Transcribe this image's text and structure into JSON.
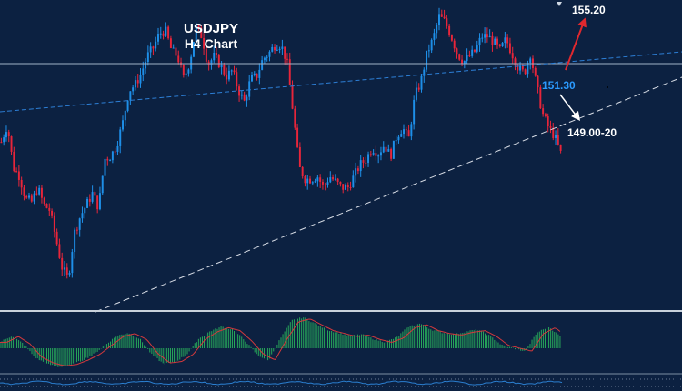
{
  "chart": {
    "title_line1": "USDJPY",
    "title_line2": "H4 Chart",
    "annotations": {
      "target_up": "155.20",
      "pivot": "151.30",
      "target_down": "149.00-20"
    },
    "colors": {
      "background": "#0c2141",
      "bull_candle": "#1e8fe8",
      "bear_candle": "#e8253a",
      "pivot_text": "#2b9bff",
      "arrow_up": "#e0282e",
      "arrow_down": "#ffffff",
      "osc_bar": "#27a85a",
      "osc_signal": "#d3393c"
    }
  },
  "chart_data": {
    "type": "candlestick",
    "symbol": "USDJPY",
    "timeframe": "H4",
    "price_levels": {
      "resistance_target": 155.2,
      "pivot": 151.3,
      "support_target_low": 149.0,
      "support_target_high": 149.2
    },
    "close_path_anchors": [
      0.56,
      0.62,
      0.47,
      0.44,
      0.36,
      0.35,
      0.4,
      0.34,
      0.32,
      0.22,
      0.12,
      0.08,
      0.24,
      0.3,
      0.34,
      0.38,
      0.33,
      0.5,
      0.51,
      0.55,
      0.63,
      0.74,
      0.76,
      0.8,
      0.86,
      0.89,
      0.94,
      0.95,
      0.88,
      0.86,
      0.78,
      0.84,
      0.96,
      0.93,
      0.83,
      0.86,
      0.83,
      0.79,
      0.81,
      0.74,
      0.7,
      0.78,
      0.79,
      0.85,
      0.87,
      0.9,
      0.9,
      0.84,
      0.66,
      0.47,
      0.43,
      0.43,
      0.44,
      0.4,
      0.44,
      0.42,
      0.4,
      0.4,
      0.44,
      0.48,
      0.5,
      0.54,
      0.52,
      0.55,
      0.51,
      0.58,
      0.61,
      0.57,
      0.72,
      0.77,
      0.87,
      0.92,
      1.0,
      0.98,
      0.93,
      0.87,
      0.84,
      0.86,
      0.88,
      0.93,
      0.93,
      0.91,
      0.88,
      0.92,
      0.87,
      0.82,
      0.8,
      0.87,
      0.76,
      0.66,
      0.61,
      0.58,
      0.52
    ],
    "oscillator_anchors": [
      0.2,
      0.4,
      0.15,
      -0.3,
      -0.5,
      -0.6,
      -0.55,
      -0.4,
      -0.2,
      0.1,
      0.4,
      0.5,
      0.3,
      -0.2,
      -0.5,
      -0.45,
      -0.2,
      0.3,
      0.55,
      0.7,
      0.6,
      0.25,
      -0.2,
      -0.4,
      0.3,
      0.9,
      1.0,
      0.8,
      0.6,
      0.5,
      0.4,
      0.45,
      0.3,
      0.2,
      0.35,
      0.7,
      0.8,
      0.6,
      0.5,
      0.45,
      0.55,
      0.6,
      0.4,
      0.1,
      0.0,
      -0.1,
      0.5,
      0.7,
      0.4
    ],
    "candle_count": 222
  }
}
